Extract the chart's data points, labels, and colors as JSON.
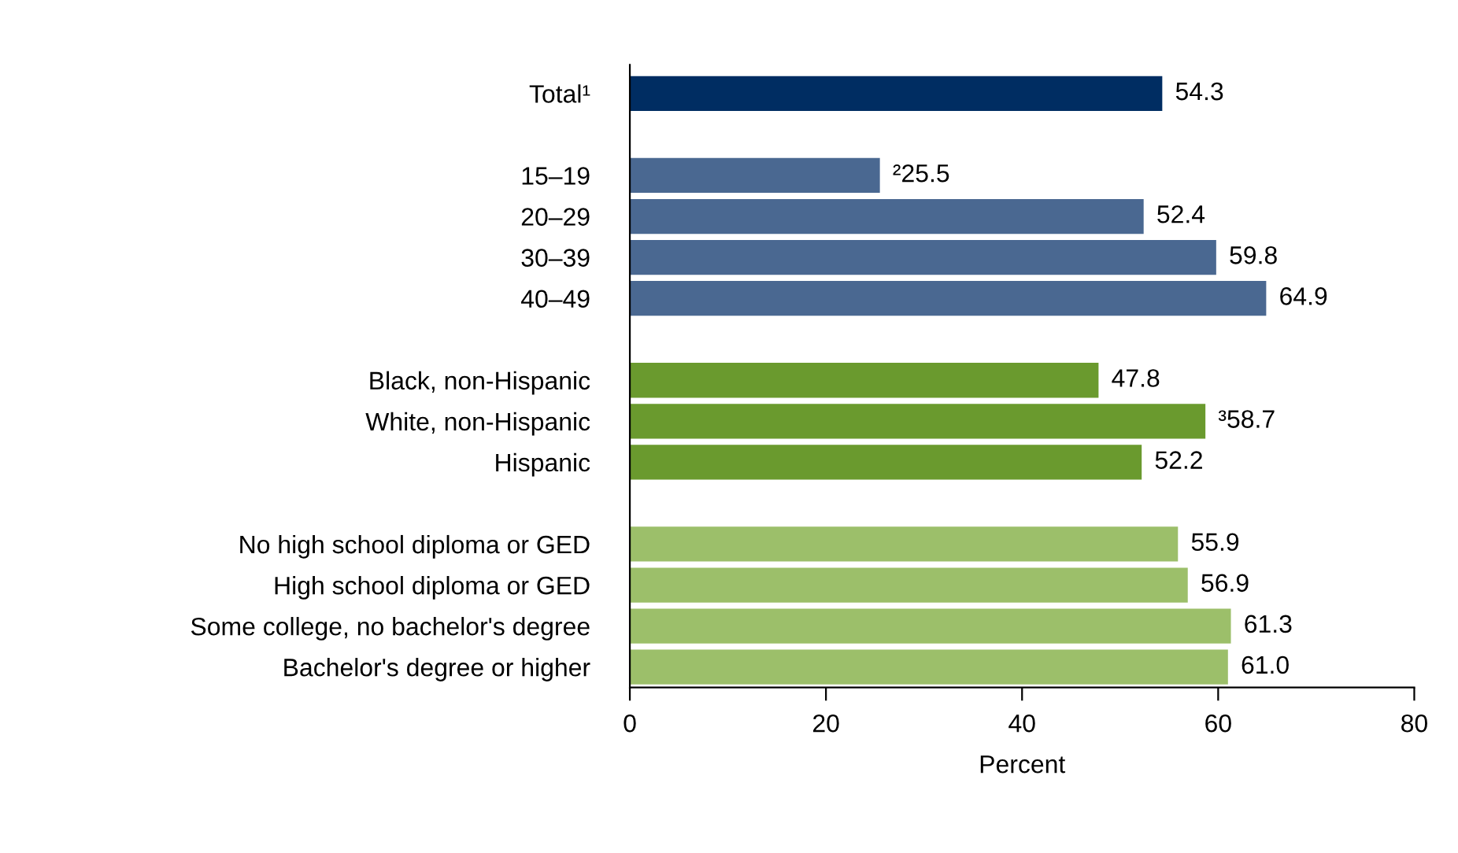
{
  "chart_data": {
    "type": "bar",
    "orientation": "horizontal",
    "xlabel": "Percent",
    "categories": [
      "Total¹",
      null,
      "15–19",
      "20–29",
      "30–39",
      "40–49",
      null,
      "Black, non-Hispanic",
      "White, non-Hispanic",
      "Hispanic",
      null,
      "No high school diploma or GED",
      "High school diploma or GED",
      "Some college, no bachelor's degree",
      "Bachelor's degree or higher"
    ],
    "values": [
      54.3,
      null,
      25.5,
      52.4,
      59.8,
      64.9,
      null,
      47.8,
      58.7,
      52.2,
      null,
      55.9,
      56.9,
      61.3,
      61.0
    ],
    "value_labels": [
      "54.3",
      null,
      "²25.5",
      "52.4",
      "59.8",
      "64.9",
      null,
      "47.8",
      "³58.7",
      "52.2",
      null,
      "55.9",
      "56.9",
      "61.3",
      "61.0"
    ],
    "colors": [
      "#002d62",
      null,
      "#4a6891",
      "#4a6891",
      "#4a6891",
      "#4a6891",
      null,
      "#6a9a2e",
      "#6a9a2e",
      "#6a9a2e",
      null,
      "#9cbf6a",
      "#9cbf6a",
      "#9cbf6a",
      "#9cbf6a"
    ],
    "xlim": [
      0,
      80
    ],
    "xticks": [
      0,
      20,
      40,
      60,
      80
    ],
    "grid": false
  }
}
